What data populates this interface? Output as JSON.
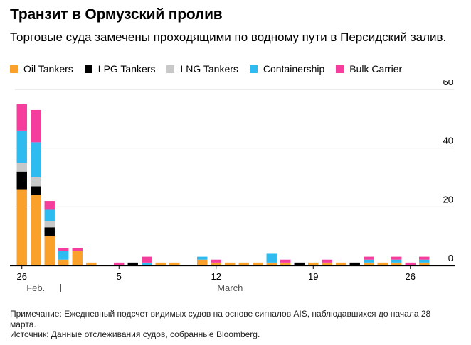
{
  "title": "Транзит в Ормузский пролив",
  "subtitle": "Торговые суда замечены проходящими по водному пути в Персидский залив.",
  "legend": [
    {
      "name": "Oil Tankers",
      "color": "#f9a12b"
    },
    {
      "name": "LPG Tankers",
      "color": "#000000"
    },
    {
      "name": "LNG Tankers",
      "color": "#c8c8c8"
    },
    {
      "name": "Containership",
      "color": "#2ebcf0"
    },
    {
      "name": "Bulk Carrier",
      "color": "#f43d9c"
    }
  ],
  "notes": {
    "note": "Примечание: Ежедневный подсчет видимых судов на основе сигналов AIS, наблюдавшихся до начала 28 марта.",
    "source": "Источник: Данные отслеживания судов, собранные Bloomberg."
  },
  "chart_data": {
    "type": "bar",
    "stacked": true,
    "categories": [
      "Feb 26",
      "Feb 27",
      "Feb 28",
      "Mar 1",
      "Mar 2",
      "Mar 3",
      "Mar 4",
      "Mar 5",
      "Mar 6",
      "Mar 7",
      "Mar 8",
      "Mar 9",
      "Mar 10",
      "Mar 11",
      "Mar 12",
      "Mar 13",
      "Mar 14",
      "Mar 15",
      "Mar 16",
      "Mar 17",
      "Mar 18",
      "Mar 19",
      "Mar 20",
      "Mar 21",
      "Mar 22",
      "Mar 23",
      "Mar 24",
      "Mar 25",
      "Mar 26",
      "Mar 27"
    ],
    "x_tick_labels": [
      "26",
      "5",
      "12",
      "19",
      "26"
    ],
    "x_tick_categories": [
      "Feb 26",
      "Mar 5",
      "Mar 12",
      "Mar 19",
      "Mar 26"
    ],
    "month_labels": [
      {
        "text": "Feb.",
        "category": "Feb 27"
      },
      {
        "text": "March",
        "category": "Mar 13"
      }
    ],
    "series": [
      {
        "name": "Oil Tankers",
        "color": "#f9a12b",
        "values": [
          26,
          24,
          10,
          2,
          5,
          1,
          0,
          0,
          0,
          0,
          1,
          1,
          0,
          2,
          1,
          1,
          1,
          1,
          1,
          1,
          0,
          1,
          1,
          1,
          0,
          1,
          1,
          1,
          0,
          1
        ]
      },
      {
        "name": "LPG Tankers",
        "color": "#000000",
        "values": [
          6,
          3,
          3,
          0,
          0,
          0,
          0,
          0,
          1,
          0,
          0,
          0,
          0,
          0,
          0,
          0,
          0,
          0,
          0,
          0,
          1,
          0,
          0,
          0,
          1,
          0,
          0,
          0,
          0,
          0
        ]
      },
      {
        "name": "LNG Tankers",
        "color": "#c8c8c8",
        "values": [
          3,
          3,
          2,
          0,
          0,
          0,
          0,
          0,
          0,
          0,
          0,
          0,
          0,
          0,
          0,
          0,
          0,
          0,
          0,
          0,
          0,
          0,
          0,
          0,
          0,
          0,
          0,
          0,
          0,
          0
        ]
      },
      {
        "name": "Containership",
        "color": "#2ebcf0",
        "values": [
          11,
          12,
          4,
          3,
          0,
          0,
          0,
          0,
          0,
          1,
          0,
          0,
          0,
          1,
          0,
          0,
          0,
          0,
          3,
          0,
          0,
          0,
          0,
          0,
          0,
          1,
          0,
          1,
          0,
          1
        ]
      },
      {
        "name": "Bulk Carrier",
        "color": "#f43d9c",
        "values": [
          9,
          11,
          3,
          1,
          1,
          0,
          0,
          1,
          0,
          2,
          0,
          0,
          0,
          0,
          1,
          0,
          0,
          0,
          0,
          1,
          0,
          0,
          1,
          0,
          0,
          1,
          0,
          1,
          1,
          1
        ]
      }
    ],
    "ylim": [
      0,
      60
    ],
    "yticks": [
      0,
      20,
      40,
      60
    ],
    "grid": true
  }
}
